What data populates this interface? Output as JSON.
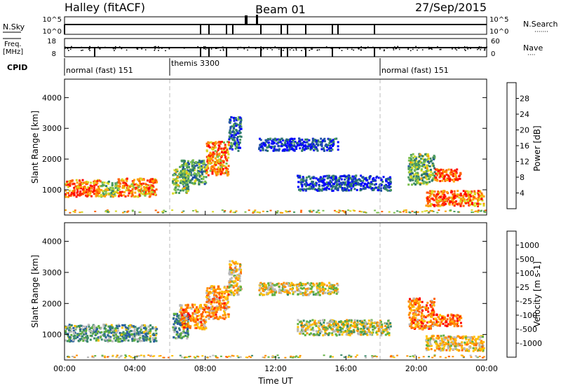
{
  "header": {
    "station": "Halley (fitACF)",
    "beam": "Beam 01",
    "date": "27/Sep/2015"
  },
  "strips": {
    "nsky_label": "N.Sky",
    "nsky_ticks": [
      "10^5",
      "10^0"
    ],
    "nsearch_label": "N.Search",
    "nsearch_ticks": [
      "10^5",
      "10^0"
    ],
    "freq_label": "Freq.",
    "freq_unit": "[MHz]",
    "freq_ticks": [
      "18",
      "8"
    ],
    "nave_label": "Nave",
    "nave_ticks": [
      "60",
      "0"
    ],
    "cpid_label": "CPID"
  },
  "chart_data": [
    {
      "type": "heatmap",
      "name": "power",
      "xlabel": "",
      "ylabel": "Slant Range [km]",
      "xlim": [
        0,
        24
      ],
      "ylim": [
        180,
        4600
      ],
      "x_ticks": [
        "00:00",
        "04:00",
        "08:00",
        "12:00",
        "16:00",
        "20:00",
        "00:00"
      ],
      "y_ticks": [
        1000,
        2000,
        3000,
        4000
      ],
      "colorbar": {
        "label": "Power [dB]",
        "ticks": [
          "28",
          "24",
          "20",
          "16",
          "12",
          "8",
          "4"
        ],
        "colors": [
          "#0000ff",
          "#1f4fa8",
          "#2f7a6a",
          "#4a9a60",
          "#7cc050",
          "#d8d820",
          "#ffa000",
          "#ff6000",
          "#ff2000",
          "#ff0000"
        ]
      },
      "regions": [
        {
          "t": [
            0.0,
            2.0
          ],
          "r": [
            800,
            1350
          ],
          "level": 0.75
        },
        {
          "t": [
            2.0,
            3.0
          ],
          "r": [
            800,
            1300
          ],
          "level": 0.45
        },
        {
          "t": [
            3.0,
            5.2
          ],
          "r": [
            800,
            1400
          ],
          "level": 0.7
        },
        {
          "t": [
            6.1,
            7.0
          ],
          "r": [
            900,
            1700
          ],
          "level": 0.4
        },
        {
          "t": [
            6.5,
            8.0
          ],
          "r": [
            1200,
            2000
          ],
          "level": 0.35
        },
        {
          "t": [
            8.0,
            9.3
          ],
          "r": [
            1500,
            2600
          ],
          "level": 0.7
        },
        {
          "t": [
            9.3,
            10.0
          ],
          "r": [
            2300,
            3400
          ],
          "level": 0.2
        },
        {
          "t": [
            11.0,
            15.5
          ],
          "r": [
            2300,
            2700
          ],
          "level": 0.1
        },
        {
          "t": [
            13.2,
            18.5
          ],
          "r": [
            1000,
            1500
          ],
          "level": 0.12
        },
        {
          "t": [
            19.5,
            21.0
          ],
          "r": [
            1200,
            2200
          ],
          "level": 0.4
        },
        {
          "t": [
            21.0,
            22.5
          ],
          "r": [
            1300,
            1700
          ],
          "level": 0.8
        },
        {
          "t": [
            20.5,
            23.8
          ],
          "r": [
            500,
            1000
          ],
          "level": 0.75
        }
      ]
    },
    {
      "type": "heatmap",
      "name": "velocity",
      "xlabel": "Time UT",
      "ylabel": "Slant Range [km]",
      "xlim": [
        0,
        24
      ],
      "ylim": [
        180,
        4600
      ],
      "x_ticks": [
        "00:00",
        "04:00",
        "08:00",
        "12:00",
        "16:00",
        "20:00",
        "00:00"
      ],
      "y_ticks": [
        1000,
        2000,
        3000,
        4000
      ],
      "colorbar": {
        "label": "Velocity [m s-1]",
        "ticks": [
          "1000",
          "500",
          "100",
          "25",
          "-25",
          "-100",
          "-500",
          "-1000"
        ],
        "colors": [
          "#1a3aa8",
          "#2a60a0",
          "#3a8a6a",
          "#60b040",
          "#b8b8b8",
          "#ffc000",
          "#ff9000",
          "#ff6000",
          "#ff0000"
        ]
      },
      "regions": [
        {
          "t": [
            0.0,
            5.2
          ],
          "r": [
            800,
            1350
          ],
          "level": 0.35
        },
        {
          "t": [
            6.1,
            7.0
          ],
          "r": [
            900,
            1700
          ],
          "level": 0.3
        },
        {
          "t": [
            6.5,
            8.0
          ],
          "r": [
            1200,
            2000
          ],
          "level": 0.72
        },
        {
          "t": [
            8.0,
            9.3
          ],
          "r": [
            1500,
            2600
          ],
          "level": 0.7
        },
        {
          "t": [
            9.3,
            10.0
          ],
          "r": [
            2300,
            3400
          ],
          "level": 0.6
        },
        {
          "t": [
            11.0,
            15.5
          ],
          "r": [
            2300,
            2700
          ],
          "level": 0.55
        },
        {
          "t": [
            13.2,
            18.5
          ],
          "r": [
            1000,
            1500
          ],
          "level": 0.5
        },
        {
          "t": [
            19.5,
            21.0
          ],
          "r": [
            1200,
            2200
          ],
          "level": 0.75
        },
        {
          "t": [
            21.0,
            22.5
          ],
          "r": [
            1300,
            1700
          ],
          "level": 0.8
        },
        {
          "t": [
            20.5,
            23.8
          ],
          "r": [
            500,
            1000
          ],
          "level": 0.6
        }
      ]
    }
  ],
  "cpid_segments": [
    {
      "label": "normal (fast) 151",
      "t_start": 0,
      "t_end": 6
    },
    {
      "label": "themis 3300",
      "t_start": 6,
      "t_end": 18
    },
    {
      "label": "normal (fast) 151",
      "t_start": 18,
      "t_end": 24
    }
  ]
}
